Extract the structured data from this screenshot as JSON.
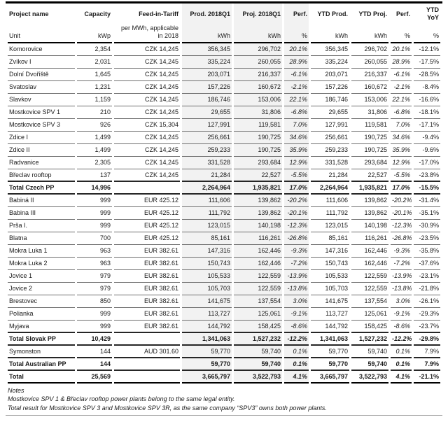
{
  "colors": {
    "shaded_bg": "#f2f2f2",
    "grid_line": "#6e6e6e",
    "section_line": "#262626",
    "strong_line": "#000000",
    "notes_line": "#a6a6a6"
  },
  "table": {
    "columns": [
      {
        "key": "project-name",
        "label": "Project name",
        "unit": "Unit",
        "shaded": false,
        "italic": false
      },
      {
        "key": "capacity",
        "label": "Capacity",
        "unit": "kWp",
        "shaded": false,
        "italic": false
      },
      {
        "key": "feed-in-tariff",
        "label": "Feed-in-Tariff",
        "unit": "per MWh, applicable in 2018",
        "shaded": false,
        "italic": false
      },
      {
        "key": "prod-2018q1",
        "label": "Prod. 2018Q1",
        "unit": "kWh",
        "shaded": true,
        "italic": false
      },
      {
        "key": "proj-2018q1",
        "label": "Proj. 2018Q1",
        "unit": "kWh",
        "shaded": true,
        "italic": false
      },
      {
        "key": "perf-q1",
        "label": "Perf.",
        "unit": "%",
        "shaded": true,
        "italic": true
      },
      {
        "key": "ytd-prod",
        "label": "YTD Prod.",
        "unit": "kWh",
        "shaded": false,
        "italic": false
      },
      {
        "key": "ytd-proj",
        "label": "YTD Proj.",
        "unit": "kWh",
        "shaded": false,
        "italic": false
      },
      {
        "key": "ytd-perf",
        "label": "Perf.",
        "unit": "%",
        "shaded": false,
        "italic": true
      },
      {
        "key": "ytd-yoy",
        "label": "YTD YoY",
        "unit": "%",
        "shaded": false,
        "italic": false
      }
    ],
    "rows": [
      {
        "type": "data",
        "cells": [
          "Komorovice",
          "2,354",
          "CZK 14,245",
          "356,345",
          "296,702",
          "20.1%",
          "356,345",
          "296,702",
          "20.1%",
          "-12.1%"
        ]
      },
      {
        "type": "data",
        "cells": [
          "Zvíkov I",
          "2,031",
          "CZK 14,245",
          "335,224",
          "260,055",
          "28.9%",
          "335,224",
          "260,055",
          "28.9%",
          "-17.5%"
        ]
      },
      {
        "type": "data",
        "cells": [
          "Dolní Dvořiště",
          "1,645",
          "CZK 14,245",
          "203,071",
          "216,337",
          "-6.1%",
          "203,071",
          "216,337",
          "-6.1%",
          "-28.5%"
        ]
      },
      {
        "type": "data",
        "cells": [
          "Svatoslav",
          "1,231",
          "CZK 14,245",
          "157,226",
          "160,672",
          "-2.1%",
          "157,226",
          "160,672",
          "-2.1%",
          "-8.4%"
        ]
      },
      {
        "type": "data",
        "cells": [
          "Slavkov",
          "1,159",
          "CZK 14,245",
          "186,746",
          "153,006",
          "22.1%",
          "186,746",
          "153,006",
          "22.1%",
          "-16.6%"
        ]
      },
      {
        "type": "data",
        "cells": [
          "Mostkovice SPV 1",
          "210",
          "CZK 14,245",
          "29,655",
          "31,806",
          "-6.8%",
          "29,655",
          "31,806",
          "-6.8%",
          "-18.1%"
        ]
      },
      {
        "type": "data",
        "cells": [
          "Mostkovice SPV 3",
          "926",
          "CZK 15,304",
          "127,991",
          "119,581",
          "7.0%",
          "127,991",
          "119,581",
          "7.0%",
          "-17.1%"
        ]
      },
      {
        "type": "data",
        "cells": [
          "Zdice I",
          "1,499",
          "CZK 14,245",
          "256,661",
          "190,725",
          "34.6%",
          "256,661",
          "190,725",
          "34.6%",
          "-9.4%"
        ]
      },
      {
        "type": "data",
        "cells": [
          "Zdice II",
          "1,499",
          "CZK 14,245",
          "259,233",
          "190,725",
          "35.9%",
          "259,233",
          "190,725",
          "35.9%",
          "-9.6%"
        ]
      },
      {
        "type": "data",
        "cells": [
          "Radvanice",
          "2,305",
          "CZK 14,245",
          "331,528",
          "293,684",
          "12.9%",
          "331,528",
          "293,684",
          "12.9%",
          "-17.0%"
        ]
      },
      {
        "type": "data",
        "cells": [
          "Břeclav rooftop",
          "137",
          "CZK 14,245",
          "21,284",
          "22,527",
          "-5.5%",
          "21,284",
          "22,527",
          "-5.5%",
          "-23.8%"
        ]
      },
      {
        "type": "total",
        "cells": [
          "Total Czech PP",
          "14,996",
          "",
          "2,264,964",
          "1,935,821",
          "17.0%",
          "2,264,964",
          "1,935,821",
          "17.0%",
          "-15.5%"
        ]
      },
      {
        "type": "data",
        "cells": [
          "Babiná II",
          "999",
          "EUR 425.12",
          "111,606",
          "139,862",
          "-20.2%",
          "111,606",
          "139,862",
          "-20.2%",
          "-31.4%"
        ]
      },
      {
        "type": "data",
        "cells": [
          "Babina III",
          "999",
          "EUR 425.12",
          "111,792",
          "139,862",
          "-20.1%",
          "111,792",
          "139,862",
          "-20.1%",
          "-35.1%"
        ]
      },
      {
        "type": "data",
        "cells": [
          "Prša I.",
          "999",
          "EUR 425.12",
          "123,015",
          "140,198",
          "-12.3%",
          "123,015",
          "140,198",
          "-12.3%",
          "-30.9%"
        ]
      },
      {
        "type": "data",
        "cells": [
          "Blatna",
          "700",
          "EUR 425.12",
          "85,161",
          "116,261",
          "-26.8%",
          "85,161",
          "116,261",
          "-26.8%",
          "-23.5%"
        ]
      },
      {
        "type": "data",
        "cells": [
          "Mokra Luka 1",
          "963",
          "EUR 382.61",
          "147,316",
          "162,446",
          "-9.3%",
          "147,316",
          "162,446",
          "-9.3%",
          "-35.8%"
        ]
      },
      {
        "type": "data",
        "cells": [
          "Mokra Luka 2",
          "963",
          "EUR 382.61",
          "150,743",
          "162,446",
          "-7.2%",
          "150,743",
          "162,446",
          "-7.2%",
          "-37.6%"
        ]
      },
      {
        "type": "data",
        "cells": [
          "Jovice 1",
          "979",
          "EUR 382.61",
          "105,533",
          "122,559",
          "-13.9%",
          "105,533",
          "122,559",
          "-13.9%",
          "-23.1%"
        ]
      },
      {
        "type": "data",
        "cells": [
          "Jovice 2",
          "979",
          "EUR 382.61",
          "105,703",
          "122,559",
          "-13.8%",
          "105,703",
          "122,559",
          "-13.8%",
          "-21.8%"
        ]
      },
      {
        "type": "data",
        "cells": [
          "Brestovec",
          "850",
          "EUR 382.61",
          "141,675",
          "137,554",
          "3.0%",
          "141,675",
          "137,554",
          "3.0%",
          "-26.1%"
        ]
      },
      {
        "type": "data",
        "cells": [
          "Polianka",
          "999",
          "EUR 382.61",
          "113,727",
          "125,061",
          "-9.1%",
          "113,727",
          "125,061",
          "-9.1%",
          "-29.3%"
        ]
      },
      {
        "type": "data",
        "cells": [
          "Myjava",
          "999",
          "EUR 382.61",
          "144,792",
          "158,425",
          "-8.6%",
          "144,792",
          "158,425",
          "-8.6%",
          "-23.7%"
        ]
      },
      {
        "type": "total",
        "cells": [
          "Total Slovak PP",
          "10,429",
          "",
          "1,341,063",
          "1,527,232",
          "-12.2%",
          "1,341,063",
          "1,527,232",
          "-12.2%",
          "-29.8%"
        ]
      },
      {
        "type": "data",
        "cells": [
          "Symonston",
          "144",
          "AUD 301.60",
          "59,770",
          "59,740",
          "0.1%",
          "59,770",
          "59,740",
          "0.1%",
          "7.9%"
        ]
      },
      {
        "type": "total",
        "cells": [
          "Total Australian PP",
          "144",
          "",
          "59,770",
          "59,740",
          "0.1%",
          "59,770",
          "59,740",
          "0.1%",
          "7.9%"
        ]
      },
      {
        "type": "total",
        "cells": [
          "Total",
          "25,569",
          "",
          "3,665,797",
          "3,522,793",
          "4.1%",
          "3,665,797",
          "3,522,793",
          "4.1%",
          "-21.1%"
        ]
      }
    ]
  },
  "notes": {
    "title": "Notes",
    "lines": [
      "Mostkovice SPV 1 & Břeclav rooftop power plants belong to the same legal entity.",
      "Total result for Mostkovice SPV 3 and Mostkovice SPV 3R, as the same company “SPV3” owns both power plants."
    ]
  }
}
